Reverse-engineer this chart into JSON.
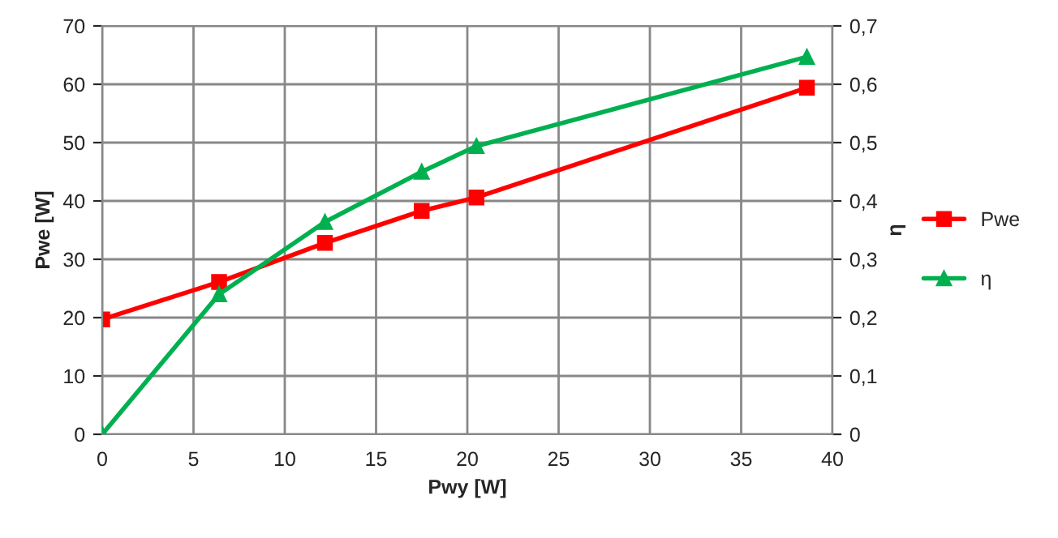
{
  "chart_data": {
    "type": "line",
    "xlabel": "Pwy [W]",
    "ylabel": "Pwe [W]",
    "y2label": "η",
    "xlim": [
      0,
      40
    ],
    "xticks": [
      0,
      5,
      10,
      15,
      20,
      25,
      30,
      35,
      40
    ],
    "ylim": [
      0,
      70
    ],
    "yticks": [
      0,
      10,
      20,
      30,
      40,
      50,
      60,
      70
    ],
    "y2lim": [
      0,
      0.7
    ],
    "y2ticks": [
      {
        "value": 0,
        "label": "0"
      },
      {
        "value": 0.1,
        "label": "0,1"
      },
      {
        "value": 0.2,
        "label": "0,2"
      },
      {
        "value": 0.3,
        "label": "0,3"
      },
      {
        "value": 0.4,
        "label": "0,4"
      },
      {
        "value": 0.5,
        "label": "0,5"
      },
      {
        "value": 0.6,
        "label": "0,6"
      },
      {
        "value": 0.7,
        "label": "0,7"
      }
    ],
    "grid": true,
    "legend": "right",
    "series": [
      {
        "name": "Pwe",
        "color": "#ff0000",
        "marker": "square",
        "x": [
          0,
          6.4,
          12.2,
          17.5,
          20.5,
          38.6
        ],
        "values": [
          19.7,
          26.1,
          32.8,
          38.3,
          40.6,
          59.4
        ]
      },
      {
        "name": "η",
        "color": "#00b050",
        "marker": "triangle",
        "axis": "y2",
        "x": [
          0,
          6.4,
          12.2,
          17.5,
          20.5,
          38.6
        ],
        "values": [
          0,
          0.24,
          0.364,
          0.45,
          0.494,
          0.647
        ]
      }
    ]
  }
}
